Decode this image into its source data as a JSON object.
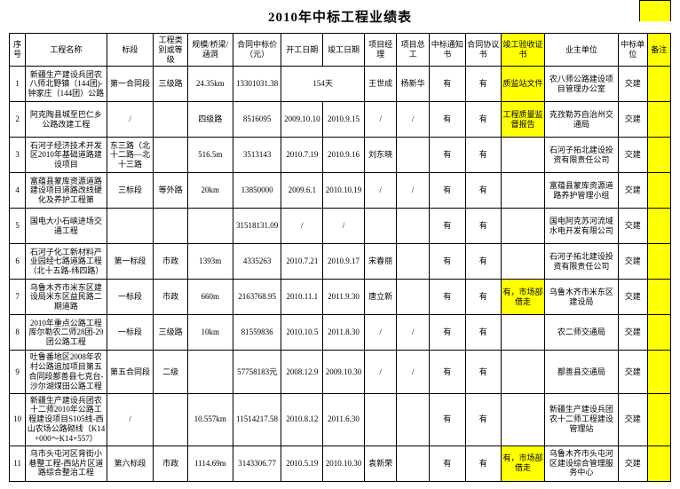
{
  "title": "2010年中标工程业绩表",
  "table": {
    "headers": {
      "seq": "序号",
      "name": "工程名称",
      "section": "标段",
      "grade": "工程类别或等级",
      "scale": "规模/桥梁/涵洞",
      "price": "合同中标价（元）",
      "start": "开工日期",
      "end": "竣工日期",
      "mgr": "项目经理",
      "eng": "项目总工",
      "notice": "中标通知书",
      "agree": "合同协议书",
      "accept": "竣工验收证书",
      "owner": "业主单位",
      "bidunit": "中标单位",
      "remark": "备注"
    },
    "rows": [
      {
        "seq": "1",
        "name": "新疆生产建设兵团农八师北野镇（144团)-钟家庄（144团）公路",
        "section": "第一合同段",
        "grade": "三级路",
        "scale": "24.35km",
        "price": "13301031.38",
        "start_colspan": "154天",
        "end": "",
        "mgr": "王世成",
        "eng": "杨新华",
        "notice": "有",
        "agree": "有",
        "accept": "质监站文件",
        "owner": "农八师公路建设项目管理办公室",
        "bidunit": "交建",
        "remark": ""
      },
      {
        "seq": "2",
        "name": "阿克陶县城至巴仁乡公路改建工程",
        "section": "/",
        "grade": "",
        "scale": "四级路",
        "price": "8516095",
        "start": "2009.10.10",
        "end": "2010.9.15",
        "mgr": "/",
        "eng": "/",
        "notice": "有",
        "agree": "有",
        "accept": "工程质量监督报告",
        "owner": "克孜勒苏自治州交通局",
        "bidunit": "交建",
        "remark": ""
      },
      {
        "seq": "3",
        "name": "石河子经济技术开发区2010年基础道路建设项目",
        "section": "东三路（北十二路—北十三路",
        "grade": "",
        "scale": "516.5m",
        "price": "3513143",
        "start": "2010.7.19",
        "end": "2010.9.16",
        "mgr": "刘东晓",
        "eng": "",
        "notice": "有",
        "agree": "有",
        "accept": "",
        "owner": "石河子拓北建设投资有限责任公司",
        "bidunit": "交建",
        "remark": ""
      },
      {
        "seq": "4",
        "name": "富蕴县蒙库资源道路建设项目道路改线硬化及养护工程第",
        "section": "三标段",
        "grade": "等外路",
        "scale": "20km",
        "price": "13850000",
        "start": "2009.6.1",
        "end": "2010.10.19",
        "mgr": "/",
        "eng": "/",
        "notice": "有",
        "agree": "有",
        "accept": "",
        "owner": "富蕴县蒙库资源道路养护管理小组",
        "bidunit": "交建",
        "remark": ""
      },
      {
        "seq": "5",
        "name": "国电大小石峡进场交通工程",
        "section": "",
        "grade": "",
        "scale": "",
        "price": "31518131.09",
        "start": "/",
        "end": "/",
        "mgr": "",
        "eng": "",
        "notice": "有",
        "agree": "有",
        "accept": "",
        "owner": "国电阿克苏河流域水电开发有限公司",
        "bidunit": "交建",
        "remark": ""
      },
      {
        "seq": "6",
        "name": "石河子化工新材料产业园经七路道路工程（北十五路-纬四路）",
        "section": "第一标段",
        "grade": "市政",
        "scale": "1393m",
        "price": "4335263",
        "start": "2010.7.21",
        "end": "2010.9.17",
        "mgr": "宋春丽",
        "eng": "",
        "notice": "有",
        "agree": "有",
        "accept": "",
        "owner": "石河子拓北建设投资有限责任公司",
        "bidunit": "交建",
        "remark": ""
      },
      {
        "seq": "7",
        "name": "乌鲁木齐市米东区建设局米东区益民路二期道路",
        "section": "一标段",
        "grade": "市政",
        "scale": "660m",
        "price": "2163768.95",
        "start": "2010.11.1",
        "end": "2011.9.30",
        "mgr": "唐立新",
        "eng": "",
        "notice": "有",
        "agree": "有",
        "accept": "有，市场部借走",
        "owner": "乌鲁木齐市米东区建设局",
        "bidunit": "交建",
        "remark": ""
      },
      {
        "seq": "8",
        "name": "2010年重点公路工程库尔勒农二师28团-29团公路工程",
        "section": "一标段",
        "grade": "三级路",
        "scale": "10km",
        "price": "81559836",
        "start": "2010.10.5",
        "end": "2011.8.30",
        "mgr": "/",
        "eng": "/",
        "notice": "有",
        "agree": "有",
        "accept": "",
        "owner": "农二师交通局",
        "bidunit": "交建",
        "remark": ""
      },
      {
        "seq": "9",
        "name": "吐鲁番地区2008年农村公路追加项目第五合同段鄯善县七克台-沙尔湖煤田公路工程",
        "section": "第五合同段",
        "grade": "二级",
        "scale": "",
        "price": "57758183元",
        "start": "2008.12.9",
        "end": "2009.10.30",
        "mgr": "/",
        "eng": "/",
        "notice": "有",
        "agree": "有",
        "accept": "",
        "owner": "鄯善县交通局",
        "bidunit": "交建",
        "remark": ""
      },
      {
        "seq": "10",
        "name": "新疆生产建设兵团农十二师2010年公路工程建设项目S105线-西山农场公路砌线（K14+000～K14+557）",
        "section": "/",
        "grade": "",
        "scale": "10.557km",
        "price": "11514217.58",
        "start": "2010.8.12",
        "end": "2011.6.30",
        "mgr": "",
        "eng": "",
        "notice": "有",
        "agree": "有",
        "accept": "",
        "owner": "新疆生产建设兵团农十二师工程建设管理站",
        "bidunit": "交建",
        "remark": ""
      },
      {
        "seq": "11",
        "name": "乌市头屯河区背街小巷整工程-西站片区道路综合整治工程",
        "section": "第六标段",
        "grade": "市政",
        "scale": "1114.69m",
        "price": "3143306.77",
        "start": "2010.5.19",
        "end": "2010.10.30",
        "mgr": "袁新荣",
        "eng": "",
        "notice": "有",
        "agree": "有",
        "accept": "有，市场部借走",
        "owner": "乌鲁木齐市头屯河区建设综合管理服务中心",
        "bidunit": "交建",
        "remark": ""
      }
    ]
  },
  "highlight_color": "#ffff00"
}
